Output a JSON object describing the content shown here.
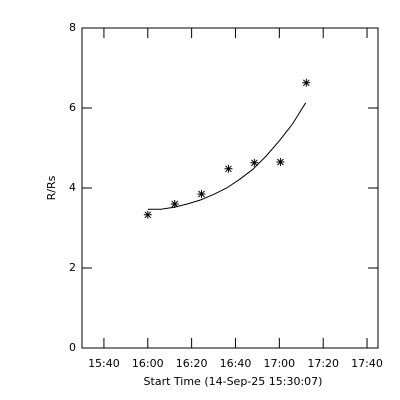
{
  "chart_data": {
    "type": "scatter",
    "x_label": "Start Time (14-Sep-25 15:30:07)",
    "y_label": "R/Rs",
    "xlim": [
      930,
      1065
    ],
    "xticks": [
      {
        "value": 940,
        "label": "15:40"
      },
      {
        "value": 960,
        "label": "16:00"
      },
      {
        "value": 980,
        "label": "16:20"
      },
      {
        "value": 1000,
        "label": "16:40"
      },
      {
        "value": 1020,
        "label": "17:00"
      },
      {
        "value": 1040,
        "label": "17:20"
      },
      {
        "value": 1060,
        "label": "17:40"
      }
    ],
    "ylim": [
      0,
      8
    ],
    "yticks": [
      0,
      2,
      4,
      6,
      8
    ],
    "series": [
      {
        "marker": "asterisk",
        "color": "#000000",
        "x": [
          960,
          972.3,
          984.5,
          996.8,
          1008.6,
          1020.5,
          1032.3
        ],
        "values": [
          3.33,
          3.6,
          3.85,
          4.48,
          4.63,
          4.65,
          6.63
        ]
      },
      {
        "marker": "line",
        "color": "#000000",
        "x": [
          960,
          966,
          972,
          978,
          984,
          990,
          996,
          1002,
          1008,
          1014,
          1020,
          1026,
          1032
        ],
        "values": [
          3.47,
          3.47,
          3.52,
          3.6,
          3.7,
          3.84,
          4.0,
          4.22,
          4.47,
          4.8,
          5.18,
          5.6,
          6.13
        ]
      }
    ]
  }
}
